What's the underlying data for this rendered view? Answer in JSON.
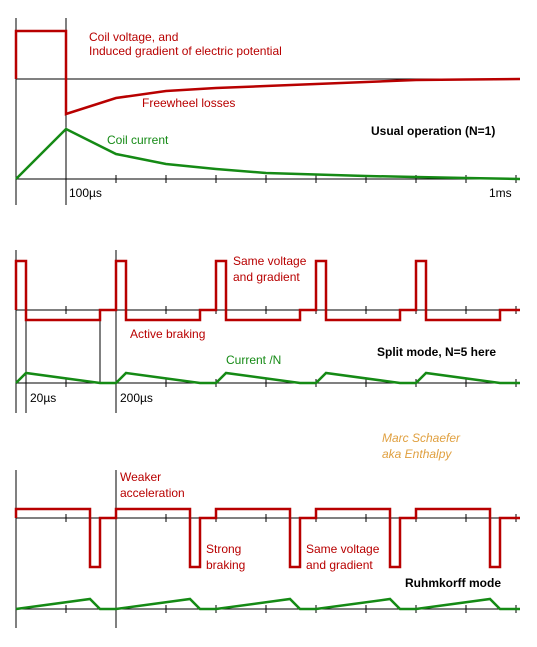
{
  "panel1": {
    "voltage_label_line1": "Coil voltage, and",
    "voltage_label_line2": "Induced gradient of electric potential",
    "freewheel_label": "Freewheel losses",
    "current_label": "Coil current",
    "mode_label": "Usual operation (N=1)",
    "time_100us": "100µs",
    "time_1ms": "1ms"
  },
  "panel2": {
    "same_label_line1": "Same voltage",
    "same_label_line2": "and gradient",
    "braking_label": "Active braking",
    "current_label": "Current /N",
    "mode_label": "Split mode, N=5 here",
    "time_20us": "20µs",
    "time_200us": "200µs"
  },
  "author": {
    "line1": "Marc Schaefer",
    "line2": "aka Enthalpy"
  },
  "panel3": {
    "weak_label_line1": "Weaker",
    "weak_label_line2": "acceleration",
    "strong_label_line1": "Strong",
    "strong_label_line2": "braking",
    "same_label_line1": "Same voltage",
    "same_label_line2": "and gradient",
    "mode_label": "Ruhmkorff mode"
  },
  "colors": {
    "voltage": "#b80000",
    "current": "#158a15",
    "author": "#e0a040"
  }
}
